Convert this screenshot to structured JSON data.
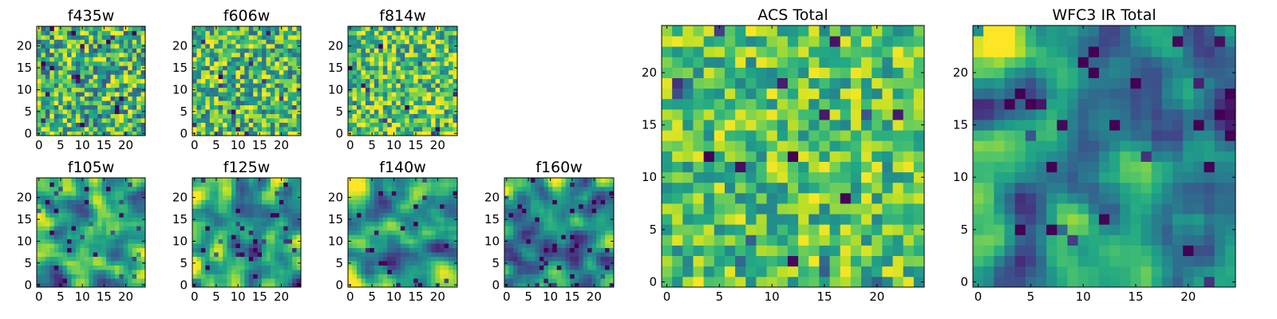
{
  "chart_data": [
    {
      "type": "heatmap",
      "title": "f435w",
      "rows": 25,
      "cols": 25,
      "xticks": [
        0,
        5,
        10,
        15,
        20
      ],
      "yticks": [
        0,
        5,
        10,
        15,
        20
      ],
      "xlim": [
        -0.5,
        24.5
      ],
      "ylim": [
        -0.5,
        24.5
      ],
      "pattern": "noise",
      "bright_corner": "none",
      "mean": 0.66,
      "contrast": 0.22,
      "colormap": "viridis"
    },
    {
      "type": "heatmap",
      "title": "f606w",
      "rows": 25,
      "cols": 25,
      "xticks": [
        0,
        5,
        10,
        15,
        20
      ],
      "yticks": [
        0,
        5,
        10,
        15,
        20
      ],
      "xlim": [
        -0.5,
        24.5
      ],
      "ylim": [
        -0.5,
        24.5
      ],
      "pattern": "noise",
      "bright_corner": "none",
      "mean": 0.68,
      "contrast": 0.21,
      "colormap": "viridis"
    },
    {
      "type": "heatmap",
      "title": "f814w",
      "rows": 25,
      "cols": 25,
      "xticks": [
        0,
        5,
        10,
        15,
        20
      ],
      "yticks": [
        0,
        5,
        10,
        15,
        20
      ],
      "xlim": [
        -0.5,
        24.5
      ],
      "ylim": [
        -0.5,
        24.5
      ],
      "pattern": "noise",
      "bright_corner": "none",
      "mean": 0.72,
      "contrast": 0.2,
      "colormap": "viridis"
    },
    {
      "type": "heatmap",
      "title": "f105w",
      "rows": 25,
      "cols": 25,
      "xticks": [
        0,
        5,
        10,
        15,
        20
      ],
      "yticks": [
        0,
        5,
        10,
        15,
        20
      ],
      "xlim": [
        -0.5,
        24.5
      ],
      "ylim": [
        -0.5,
        24.5
      ],
      "pattern": "smooth",
      "bright_corner": "top-left",
      "mean": 0.58,
      "contrast": 0.18,
      "colormap": "viridis"
    },
    {
      "type": "heatmap",
      "title": "f125w",
      "rows": 25,
      "cols": 25,
      "xticks": [
        0,
        5,
        10,
        15,
        20
      ],
      "yticks": [
        0,
        5,
        10,
        15,
        20
      ],
      "xlim": [
        -0.5,
        24.5
      ],
      "ylim": [
        -0.5,
        24.5
      ],
      "pattern": "smooth",
      "bright_corner": "top-left",
      "mean": 0.56,
      "contrast": 0.18,
      "colormap": "viridis"
    },
    {
      "type": "heatmap",
      "title": "f140w",
      "rows": 25,
      "cols": 25,
      "xticks": [
        0,
        5,
        10,
        15,
        20
      ],
      "yticks": [
        0,
        5,
        10,
        15,
        20
      ],
      "xlim": [
        -0.5,
        24.5
      ],
      "ylim": [
        -0.5,
        24.5
      ],
      "pattern": "smooth",
      "bright_corner": "top-left",
      "mean": 0.55,
      "contrast": 0.18,
      "colormap": "viridis"
    },
    {
      "type": "heatmap",
      "title": "f160w",
      "rows": 25,
      "cols": 25,
      "xticks": [
        0,
        5,
        10,
        15,
        20
      ],
      "yticks": [
        0,
        5,
        10,
        15,
        20
      ],
      "xlim": [
        -0.5,
        24.5
      ],
      "ylim": [
        -0.5,
        24.5
      ],
      "pattern": "smooth",
      "bright_corner": "top-left",
      "mean": 0.45,
      "contrast": 0.17,
      "colormap": "viridis"
    },
    {
      "type": "heatmap",
      "title": "ACS Total",
      "rows": 25,
      "cols": 25,
      "xticks": [
        0,
        5,
        10,
        15,
        20
      ],
      "yticks": [
        0,
        5,
        10,
        15,
        20
      ],
      "xlim": [
        -0.5,
        24.5
      ],
      "ylim": [
        -0.5,
        24.5
      ],
      "pattern": "noise",
      "bright_corner": "none",
      "mean": 0.72,
      "contrast": 0.16,
      "colormap": "viridis"
    },
    {
      "type": "heatmap",
      "title": "WFC3 IR Total",
      "rows": 25,
      "cols": 25,
      "xticks": [
        0,
        5,
        10,
        15,
        20
      ],
      "yticks": [
        0,
        5,
        10,
        15,
        20
      ],
      "xlim": [
        -0.5,
        24.5
      ],
      "ylim": [
        -0.5,
        24.5
      ],
      "pattern": "smooth",
      "bright_corner": "top-left",
      "mean": 0.47,
      "contrast": 0.16,
      "colormap": "viridis"
    }
  ]
}
